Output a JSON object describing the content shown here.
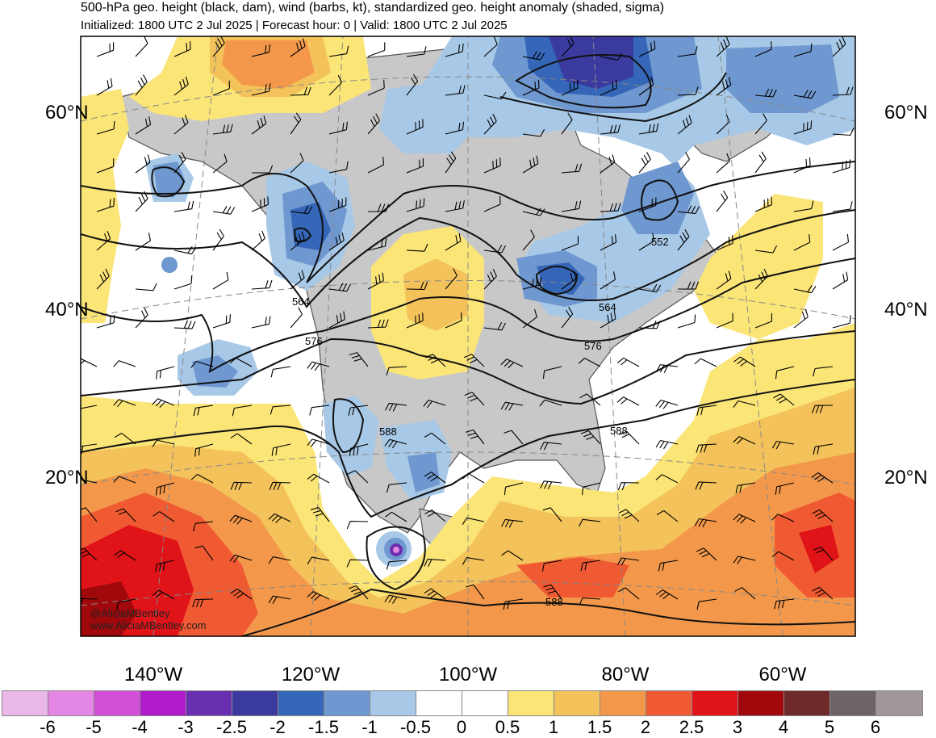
{
  "header": {
    "title": "500-hPa geo. height (black, dam), wind (barbs, kt), standardized geo. height anomaly (shaded, sigma)",
    "subtitle": "Initialized: 1800 UTC 2 Jul 2025 | Forecast hour: 0 | Valid: 1800 UTC 2 Jul 2025"
  },
  "lat_labels_left": [
    "60°N",
    "40°N",
    "20°N"
  ],
  "lat_labels_right": [
    "60°N",
    "40°N",
    "20°N"
  ],
  "lon_labels": [
    "140°W",
    "120°W",
    "100°W",
    "80°W",
    "60°W"
  ],
  "contour_labels": [
    "552",
    "564",
    "564",
    "576",
    "576",
    "588",
    "588",
    "588"
  ],
  "credit": {
    "handle": "@AliciaMBentley",
    "site": "www.AliciaMBentley.com"
  },
  "colorbar": {
    "labels": [
      "-6",
      "-5",
      "-4",
      "-3",
      "-2.5",
      "-2",
      "-1.5",
      "-1",
      "-0.5",
      "0",
      "0.5",
      "1",
      "1.5",
      "2",
      "2.5",
      "3",
      "4",
      "5",
      "6"
    ],
    "colors": [
      "#e9b8e8",
      "#e487e4",
      "#d44fd8",
      "#b01ccc",
      "#6a2fb0",
      "#3b3a9e",
      "#3566b8",
      "#6f97d0",
      "#a7c8e6",
      "#ffffff",
      "#ffffff",
      "#fbe577",
      "#f4c25a",
      "#f3984a",
      "#f05a32",
      "#e01418",
      "#a0080c",
      "#6e2a2a",
      "#6d6565",
      "#a09898"
    ]
  },
  "colors": {
    "land": "#c8c8c8",
    "coast": "#555555",
    "contour": "#111111",
    "barb": "#000000"
  }
}
